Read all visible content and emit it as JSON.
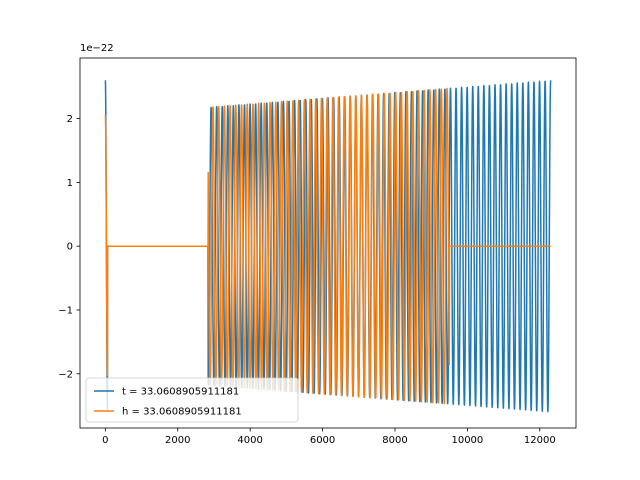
{
  "chart_data": {
    "type": "line",
    "title": "",
    "xlabel": "",
    "ylabel": "",
    "y_offset_label": "1e−22",
    "xlim": [
      -700,
      13000
    ],
    "ylim": [
      -2.85,
      2.95
    ],
    "x_ticks": [
      0,
      2000,
      4000,
      6000,
      8000,
      10000,
      12000
    ],
    "x_tick_labels": [
      "0",
      "2000",
      "4000",
      "6000",
      "8000",
      "10000",
      "12000"
    ],
    "y_ticks": [
      -2,
      -1,
      0,
      1,
      2
    ],
    "y_tick_labels": [
      "−2",
      "−1",
      "0",
      "1",
      "2"
    ],
    "grid": false,
    "legend_position": "lower-left",
    "series": [
      {
        "name": "t = 33.0608905911181",
        "color": "#1f77b4",
        "active_intervals": [
          [
            0,
            60
          ],
          [
            2840,
            12300
          ]
        ],
        "amplitude_start": 2.05,
        "amplitude_end": 2.6,
        "initial_spike": 2.6,
        "cycles": 80,
        "x_end": 12300
      },
      {
        "name": "h = 33.0608905911181",
        "color": "#ff7f0e",
        "active_intervals": [
          [
            0,
            60
          ],
          [
            2840,
            9500
          ]
        ],
        "amplitude_start": 2.05,
        "amplitude_end": 2.6,
        "initial_spike": 2.05,
        "cycles": 78,
        "x_end": 12300
      }
    ]
  }
}
